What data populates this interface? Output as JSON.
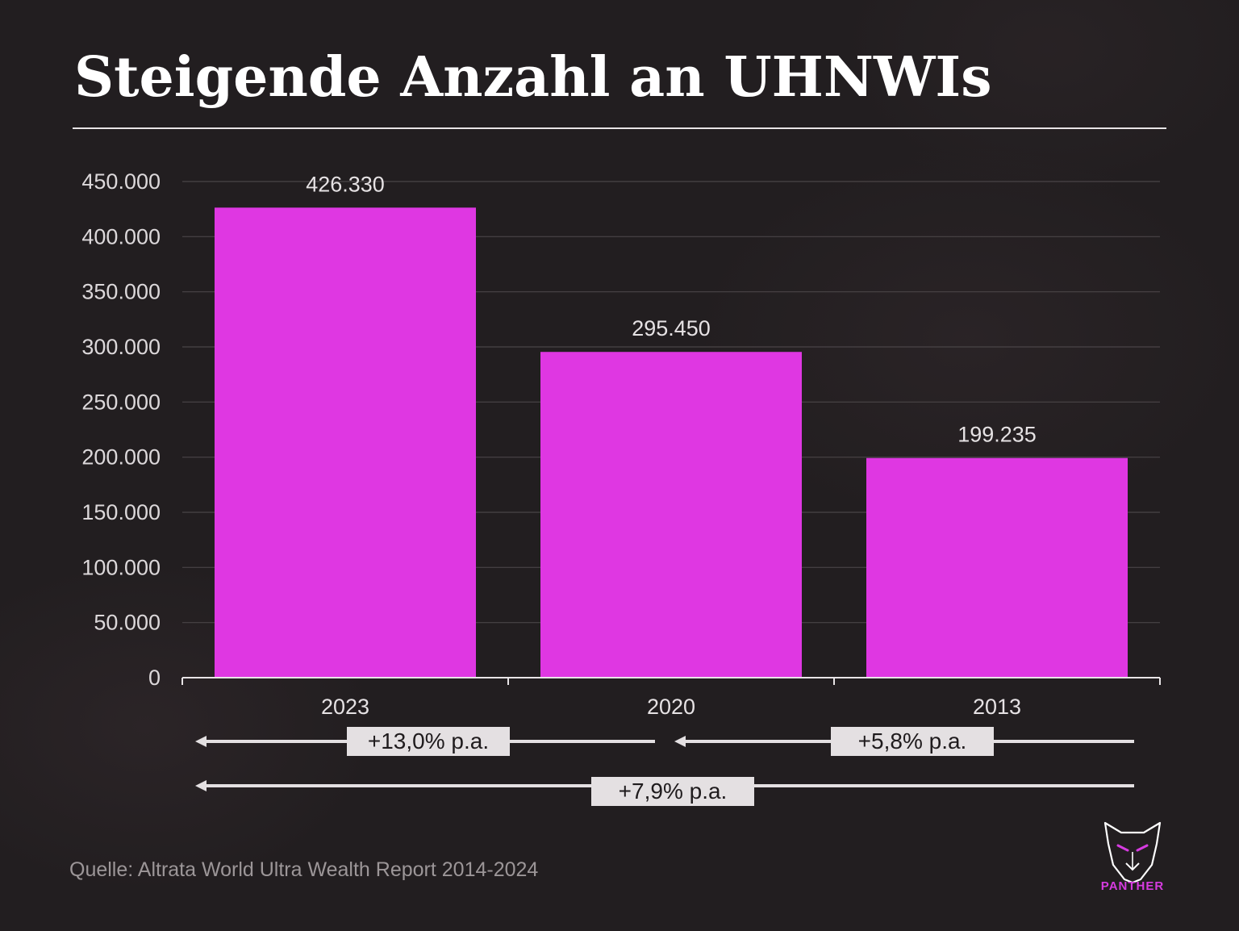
{
  "title": "Steigende Anzahl an UHNWIs",
  "source": "Quelle: Altrata World Ultra Wealth Report 2014-2024",
  "brand": {
    "name": "PANTHER",
    "logo_icon": "panther-head-icon",
    "color": "#d63be0"
  },
  "colors": {
    "bar": "#df37e2",
    "background": "#221e20",
    "grid": "#4a4447",
    "growth_box": "#e4e0e2"
  },
  "chart_data": {
    "type": "bar",
    "categories": [
      "2023",
      "2020",
      "2013"
    ],
    "values": [
      426330,
      295450,
      199235
    ],
    "data_labels": [
      "426.330",
      "295.450",
      "199.235"
    ],
    "y_ticks": [
      0,
      50000,
      100000,
      150000,
      200000,
      250000,
      300000,
      350000,
      400000,
      450000
    ],
    "y_tick_labels": [
      "0",
      "50.000",
      "100.000",
      "150.000",
      "200.000",
      "250.000",
      "300.000",
      "350.000",
      "400.000",
      "450.000"
    ],
    "ylim": [
      0,
      450000
    ],
    "grid": true,
    "xlabel": "",
    "ylabel": "",
    "growth_annotations": [
      {
        "label": "+13,0% p.a.",
        "from": "2020",
        "to": "2023"
      },
      {
        "label": "+5,8% p.a.",
        "from": "2013",
        "to": "2020"
      },
      {
        "label": "+7,9% p.a.",
        "from": "2013",
        "to": "2023"
      }
    ]
  }
}
